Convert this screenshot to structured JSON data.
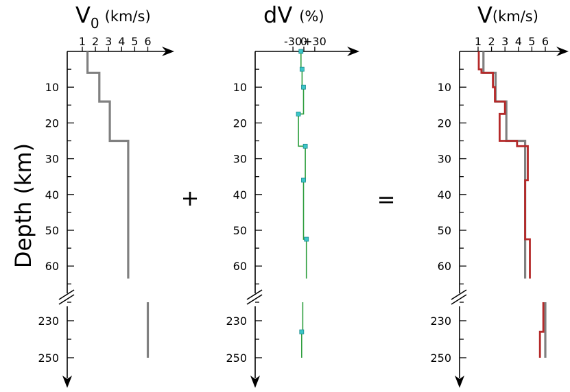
{
  "chart_data": {
    "type": "line",
    "ylabel": "Depth (km)",
    "y_ticks_upper": [
      10,
      20,
      30,
      40,
      50,
      60
    ],
    "y_ticks_lower": [
      230,
      250
    ],
    "operators": [
      "+",
      "="
    ],
    "colors": {
      "base": "#808080",
      "perturbation": "#2e9e3e",
      "marker": "#3cc6c8",
      "result": "#b52a2a"
    },
    "panels": [
      {
        "title_main": "V",
        "title_sub": "0",
        "title_unit": "(km/s)",
        "xticks": [
          "1",
          "2",
          "3",
          "4",
          "5",
          "6"
        ],
        "xtick_values": [
          1,
          2,
          3,
          4,
          5,
          6
        ],
        "series": [
          {
            "role": "base",
            "depth": [
              0,
              6,
              6,
              14,
              14,
              25,
              25,
              63.5
            ],
            "values": [
              1.4,
              1.4,
              2.3,
              2.3,
              3.1,
              3.1,
              4.5,
              4.5
            ]
          },
          {
            "role": "base",
            "depth": [
              220,
              250
            ],
            "values": [
              6.0,
              6.0
            ]
          }
        ]
      },
      {
        "title_main": "dV",
        "title_unit": "(%)",
        "xticks": [
          "-30",
          "0",
          "+30"
        ],
        "xtick_values": [
          -30,
          0,
          30
        ],
        "series": [
          {
            "role": "perturbation",
            "depth": [
              0,
              5,
              5,
              10,
              10,
              17.5,
              17.5,
              26.5,
              26.5,
              36,
              36,
              52.5,
              52.5,
              63.5
            ],
            "values": [
              -8,
              -8,
              -5,
              -5,
              -1,
              -1,
              -15,
              -15,
              4,
              4,
              -1,
              -1,
              7,
              7
            ],
            "marker_depths": [
              0,
              5,
              10,
              17.5,
              26.5,
              36,
              52.5
            ],
            "marker_values": [
              -8,
              -5,
              -1,
              -15,
              4,
              -1,
              7
            ]
          },
          {
            "role": "perturbation",
            "depth": [
              220,
              236,
              236,
              250
            ],
            "values": [
              -3,
              -3,
              -6,
              -6
            ],
            "marker_depths": [
              236
            ],
            "marker_values": [
              -6
            ]
          }
        ]
      },
      {
        "title_main": "V",
        "title_unit": "(km/s)",
        "xticks": [
          "1",
          "2",
          "3",
          "4",
          "5",
          "6"
        ],
        "xtick_values": [
          1,
          2,
          3,
          4,
          5,
          6
        ],
        "series": [
          {
            "role": "base",
            "depth": [
              0,
              6,
              6,
              14,
              14,
              25,
              25,
              63.5
            ],
            "values": [
              1.4,
              1.4,
              2.3,
              2.3,
              3.1,
              3.1,
              4.5,
              4.5
            ]
          },
          {
            "role": "base",
            "depth": [
              220,
              250
            ],
            "values": [
              6.0,
              6.0
            ]
          },
          {
            "role": "result",
            "depth": [
              0,
              5,
              5,
              6,
              6,
              10,
              10,
              14,
              14,
              17.5,
              17.5,
              25,
              25,
              26.5,
              26.5,
              36,
              36,
              52.5,
              52.5,
              63.5
            ],
            "values": [
              1.05,
              1.05,
              1.25,
              1.25,
              2.1,
              2.1,
              2.25,
              2.25,
              3.0,
              3.0,
              2.6,
              2.6,
              3.9,
              3.9,
              4.7,
              4.7,
              4.5,
              4.5,
              4.85,
              4.85
            ]
          },
          {
            "role": "result",
            "depth": [
              220,
              236,
              236,
              250
            ],
            "values": [
              5.85,
              5.85,
              5.6,
              5.6
            ]
          }
        ]
      }
    ]
  }
}
